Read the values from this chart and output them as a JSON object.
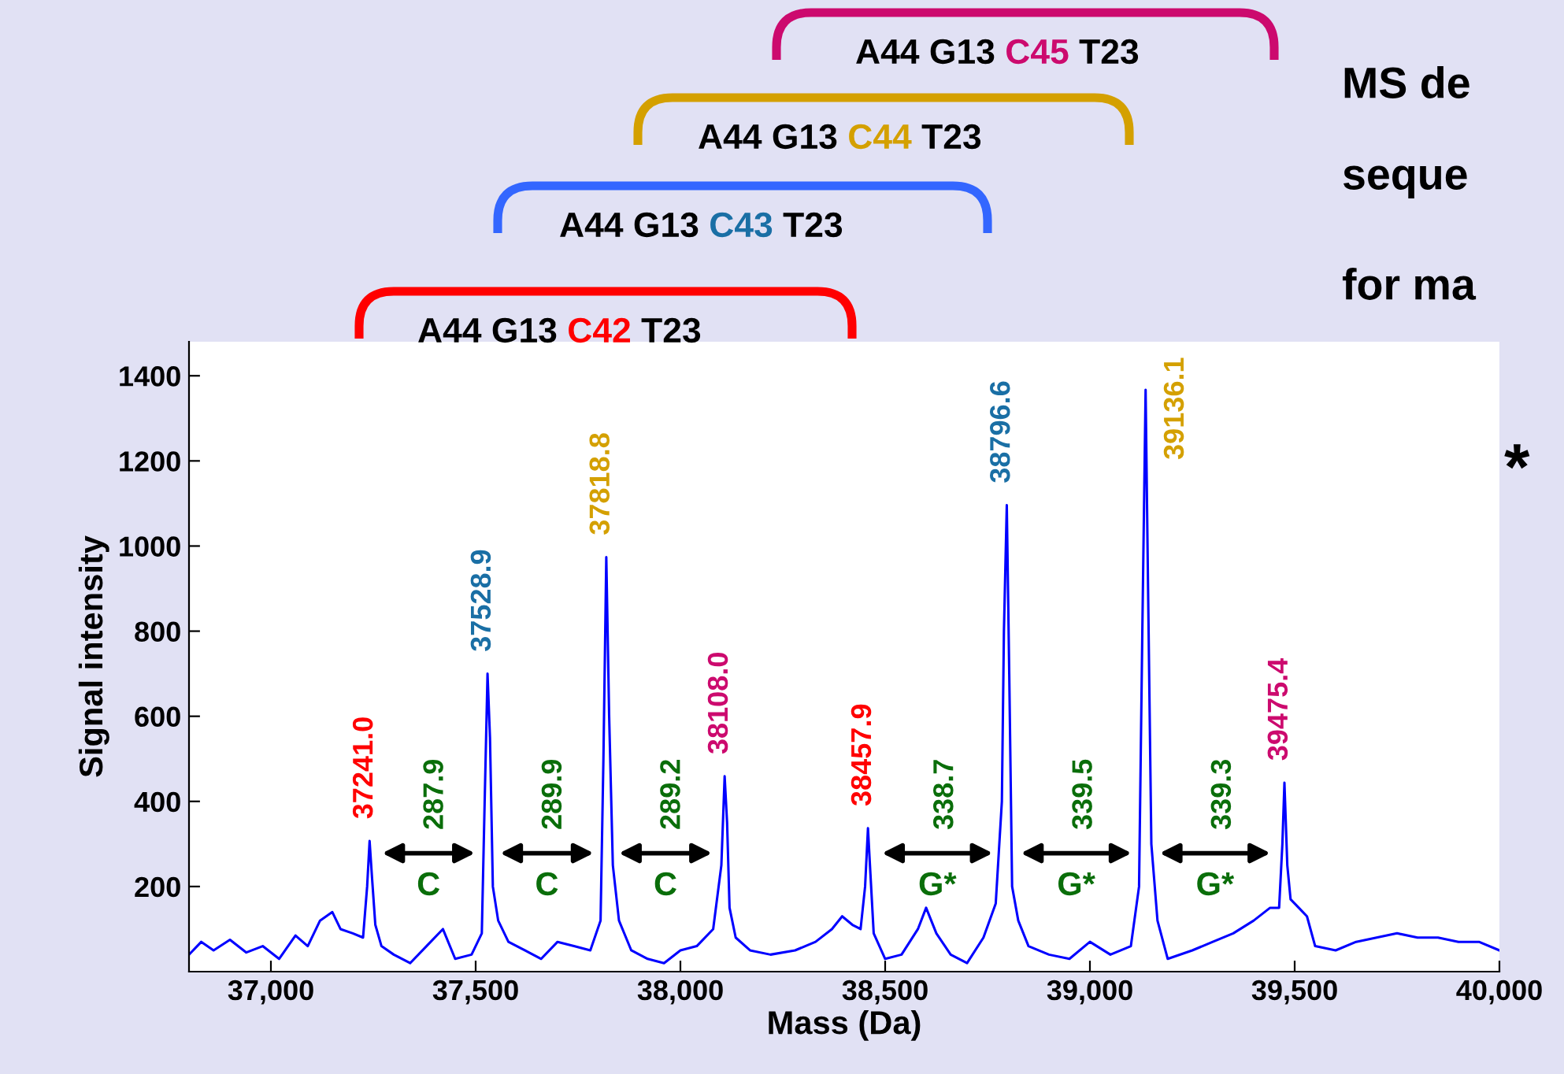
{
  "chart_data": {
    "type": "line",
    "xlabel": "Mass (Da)",
    "ylabel": "Signal intensity",
    "xlim": [
      36800,
      40000
    ],
    "ylim": [
      0,
      1480
    ],
    "xticks": [
      {
        "value": 37000,
        "label": "37,000"
      },
      {
        "value": 37500,
        "label": "37,500"
      },
      {
        "value": 38000,
        "label": "38,000"
      },
      {
        "value": 38500,
        "label": "38,500"
      },
      {
        "value": 39000,
        "label": "39,000"
      },
      {
        "value": 39500,
        "label": "39,500"
      },
      {
        "value": 40000,
        "label": "40,000"
      }
    ],
    "yticks": [
      200,
      400,
      600,
      800,
      1000,
      1200,
      1400
    ],
    "grid": false,
    "legend": false,
    "marker": "none",
    "line_style": "solid",
    "x": [
      36800,
      36830,
      36860,
      36900,
      36940,
      36980,
      37020,
      37060,
      37090,
      37120,
      37150,
      37170,
      37200,
      37225,
      37235,
      37241,
      37247,
      37255,
      37270,
      37300,
      37340,
      37380,
      37420,
      37450,
      37490,
      37515,
      37522,
      37529,
      37535,
      37542,
      37555,
      37580,
      37620,
      37660,
      37700,
      37740,
      37780,
      37805,
      37812,
      37819,
      37826,
      37835,
      37850,
      37880,
      37920,
      37960,
      38000,
      38040,
      38080,
      38100,
      38108,
      38114,
      38120,
      38135,
      38170,
      38220,
      38280,
      38330,
      38370,
      38395,
      38420,
      38440,
      38451,
      38458,
      38464,
      38472,
      38500,
      38540,
      38580,
      38600,
      38625,
      38660,
      38700,
      38740,
      38770,
      38785,
      38790,
      38797,
      38803,
      38810,
      38825,
      38850,
      38900,
      38950,
      39000,
      39050,
      39100,
      39120,
      39128,
      39136,
      39142,
      39150,
      39165,
      39190,
      39250,
      39300,
      39350,
      39400,
      39440,
      39462,
      39470,
      39475,
      39482,
      39490,
      39510,
      39530,
      39550,
      39600,
      39650,
      39700,
      39750,
      39800,
      39850,
      39900,
      39950,
      40000
    ],
    "series": [
      {
        "color": "#0000ff",
        "values": [
          40,
          70,
          50,
          75,
          45,
          60,
          30,
          85,
          60,
          120,
          140,
          100,
          90,
          80,
          200,
          307,
          220,
          110,
          60,
          40,
          20,
          60,
          100,
          30,
          40,
          90,
          400,
          700,
          550,
          200,
          120,
          70,
          50,
          30,
          70,
          60,
          50,
          120,
          500,
          974,
          600,
          250,
          120,
          50,
          30,
          20,
          50,
          60,
          100,
          250,
          459,
          350,
          150,
          80,
          50,
          40,
          50,
          70,
          100,
          130,
          110,
          100,
          200,
          337,
          230,
          90,
          30,
          40,
          100,
          150,
          90,
          40,
          20,
          80,
          160,
          400,
          800,
          1096,
          700,
          200,
          120,
          60,
          40,
          30,
          70,
          40,
          60,
          200,
          800,
          1367,
          900,
          300,
          120,
          30,
          50,
          70,
          90,
          120,
          150,
          150,
          300,
          444,
          250,
          170,
          150,
          130,
          60,
          50,
          70,
          80,
          90,
          80,
          80,
          70,
          70,
          50
        ]
      }
    ],
    "annotations": [
      {
        "text": "37241.0",
        "x": 37241,
        "y": 307
      },
      {
        "text": "37528.9",
        "x": 37529,
        "y": 700
      },
      {
        "text": "37818.8",
        "x": 37819,
        "y": 974
      },
      {
        "text": "38108.0",
        "x": 38108,
        "y": 459
      },
      {
        "text": "38457.9",
        "x": 38458,
        "y": 337
      },
      {
        "text": "38796.6",
        "x": 38797,
        "y": 1096
      },
      {
        "text": "39136.1",
        "x": 39136,
        "y": 1367
      },
      {
        "text": "39475.4",
        "x": 39475,
        "y": 444
      },
      "287.9",
      "289.9",
      "289.2",
      "338.7",
      "339.5",
      "339.3",
      "C",
      "C",
      "C",
      "G*",
      "G*",
      "G*",
      "A44 G13 C42 T23",
      "A44 G13 C43 T23",
      "A44 G13 C44 T23",
      "A44 G13 C45 T23",
      "MS de",
      "seque",
      "for ma",
      "*"
    ]
  }
}
